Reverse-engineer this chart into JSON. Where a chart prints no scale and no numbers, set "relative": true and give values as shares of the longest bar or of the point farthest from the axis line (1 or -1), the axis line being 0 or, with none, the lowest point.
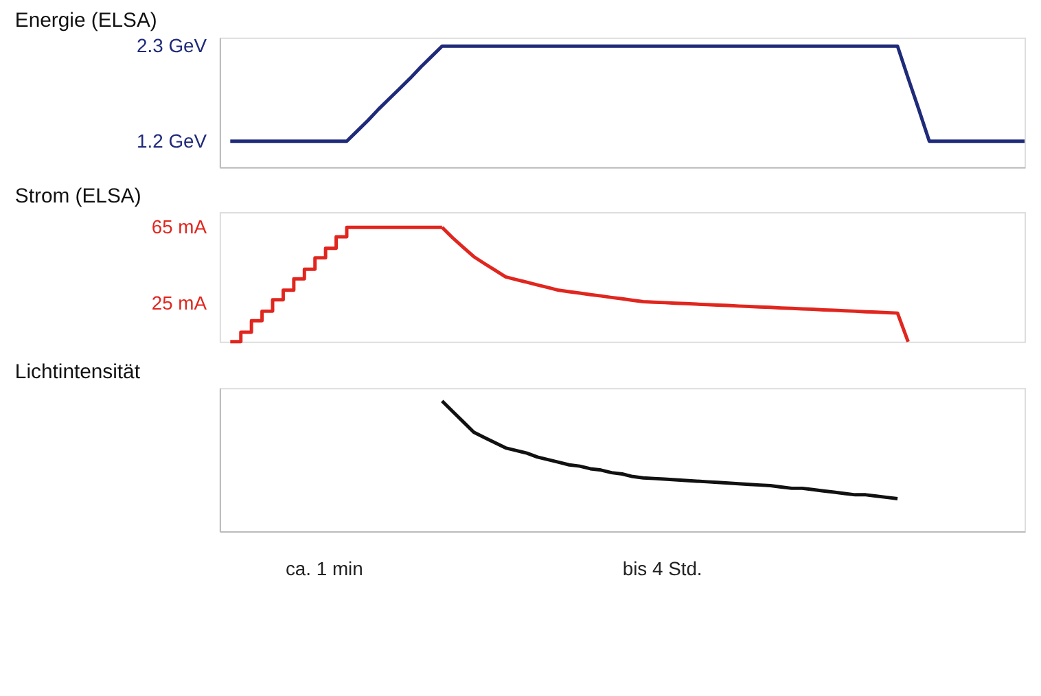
{
  "chart_data": [
    {
      "type": "line",
      "title": "Energie (ELSA)",
      "ylim": [
        0.9,
        2.4
      ],
      "yticks": [
        {
          "value": 1.2,
          "label": "1.2 GeV"
        },
        {
          "value": 2.3,
          "label": "2.3 GeV"
        }
      ],
      "tick_labels": "y",
      "categories": [
        null,
        null,
        null,
        null,
        null,
        null,
        null,
        null,
        null,
        null,
        null,
        null,
        null,
        null,
        null,
        null,
        null,
        null,
        null,
        null,
        null,
        null,
        null,
        null,
        null,
        null,
        null,
        null,
        null,
        null,
        null,
        null,
        null,
        null,
        null,
        null,
        null,
        null,
        null,
        null,
        null,
        null,
        null,
        null,
        null,
        null,
        null,
        null,
        null,
        null,
        null,
        null,
        null,
        null,
        null,
        null,
        null,
        null,
        null,
        null,
        null,
        null,
        null,
        null,
        null,
        null,
        null,
        null,
        null,
        null,
        null,
        null,
        null,
        null,
        null,
        null,
        null
      ],
      "series": [
        {
          "color": "#1f2a7a",
          "values": [
            null,
            1.2,
            1.2,
            1.2,
            1.2,
            1.2,
            1.2,
            1.2,
            1.2,
            1.2,
            1.2,
            1.2,
            1.2,
            1.32,
            1.44,
            1.57,
            1.69,
            1.81,
            1.93,
            2.06,
            2.18,
            2.3,
            2.3,
            2.3,
            2.3,
            2.3,
            2.3,
            2.3,
            2.3,
            2.3,
            2.3,
            2.3,
            2.3,
            2.3,
            2.3,
            2.3,
            2.3,
            2.3,
            2.3,
            2.3,
            2.3,
            2.3,
            2.3,
            2.3,
            2.3,
            2.3,
            2.3,
            2.3,
            2.3,
            2.3,
            2.3,
            2.3,
            2.3,
            2.3,
            2.3,
            2.3,
            2.3,
            2.3,
            2.3,
            2.3,
            2.3,
            2.3,
            2.3,
            2.3,
            2.3,
            1.93,
            1.57,
            1.2,
            1.2,
            1.2,
            1.2,
            1.2,
            1.2,
            1.2,
            1.2,
            1.2,
            1.2
          ]
        }
      ]
    },
    {
      "type": "line",
      "title": "Strom (ELSA)",
      "ylim": [
        5,
        73
      ],
      "yticks": [
        {
          "value": 25,
          "label": "25 mA"
        },
        {
          "value": 65,
          "label": "65 mA"
        }
      ],
      "tick_labels": "y",
      "categories": [
        null,
        null,
        null,
        null,
        null,
        null,
        null,
        null,
        null,
        null,
        null,
        null,
        null,
        null,
        null,
        null,
        null,
        null,
        null,
        null,
        null,
        null,
        null,
        null,
        null,
        null,
        null,
        null,
        null,
        null,
        null,
        null,
        null,
        null,
        null,
        null,
        null,
        null,
        null,
        null,
        null,
        null,
        null,
        null,
        null,
        null,
        null,
        null,
        null,
        null,
        null,
        null,
        null,
        null,
        null,
        null,
        null,
        null,
        null,
        null,
        null,
        null,
        null,
        null,
        null,
        null,
        null,
        null,
        null,
        null,
        null,
        null,
        null,
        null,
        null,
        null,
        null
      ],
      "series": [
        {
          "type": "step",
          "color": "#e0261e",
          "values": [
            null,
            5,
            10,
            16,
            21,
            27,
            32,
            38,
            43,
            49,
            54,
            60,
            65,
            65,
            65,
            65,
            65,
            65,
            65,
            65,
            65,
            65,
            null,
            null,
            null,
            null,
            null,
            null,
            null,
            null,
            null,
            null,
            null,
            null,
            null,
            null,
            null,
            null,
            null,
            null,
            null,
            null,
            null,
            null,
            null,
            null,
            null,
            null,
            null,
            null,
            null,
            null,
            null,
            null,
            null,
            null,
            null,
            null,
            null,
            null,
            null,
            null,
            null,
            null,
            null,
            null,
            null,
            null,
            null,
            null,
            null,
            null,
            null,
            null,
            null,
            null,
            null
          ]
        },
        {
          "type": "line",
          "color": "#e0261e",
          "values": [
            null,
            null,
            null,
            null,
            null,
            null,
            null,
            null,
            null,
            null,
            null,
            null,
            null,
            null,
            null,
            null,
            null,
            null,
            null,
            null,
            null,
            65,
            59.5,
            54.5,
            49.6,
            46,
            42.5,
            39,
            37.6,
            36.2,
            34.8,
            33.4,
            32,
            31.2,
            30.5,
            29.7,
            29,
            28.2,
            27.5,
            26.7,
            26,
            25.7,
            25.5,
            25.2,
            25,
            24.7,
            24.5,
            24.2,
            24,
            23.7,
            23.5,
            23.2,
            23,
            22.7,
            22.5,
            22.2,
            22,
            21.7,
            21.5,
            21.2,
            21,
            20.7,
            20.5,
            20.2,
            20,
            5,
            null,
            null,
            null,
            null,
            null,
            null,
            null,
            null,
            null,
            null,
            null
          ]
        }
      ]
    },
    {
      "type": "line",
      "title": "Lichtintensität",
      "relative": true,
      "tick_labels": false,
      "categories": [
        null,
        null,
        null,
        null,
        null,
        null,
        null,
        null,
        null,
        null,
        null,
        null,
        null,
        null,
        null,
        null,
        null,
        null,
        null,
        null,
        null,
        null,
        null,
        null,
        null,
        null,
        null,
        null,
        null,
        null,
        null,
        null,
        null,
        null,
        null,
        null,
        null,
        null,
        null,
        null,
        null,
        null,
        null,
        null,
        null,
        null,
        null,
        null,
        null,
        null,
        null,
        null,
        null,
        null,
        null,
        null,
        null,
        null,
        null,
        null,
        null,
        null,
        null,
        null,
        null,
        null,
        null,
        null,
        null,
        null,
        null,
        null,
        null,
        null,
        null,
        null,
        null
      ],
      "series": [
        {
          "color": "#111111",
          "values": [
            null,
            null,
            null,
            null,
            null,
            null,
            null,
            null,
            null,
            null,
            null,
            null,
            null,
            null,
            null,
            null,
            null,
            null,
            null,
            null,
            null,
            1.0,
            0.92,
            0.84,
            0.76,
            0.72,
            0.68,
            0.64,
            0.62,
            0.6,
            0.57,
            0.55,
            0.53,
            0.51,
            0.5,
            0.48,
            0.47,
            0.45,
            0.44,
            0.42,
            0.41,
            0.405,
            0.4,
            0.395,
            0.39,
            0.385,
            0.38,
            0.375,
            0.37,
            0.365,
            0.36,
            0.355,
            0.35,
            0.34,
            0.33,
            0.33,
            0.32,
            0.31,
            0.3,
            0.29,
            0.28,
            0.28,
            0.27,
            0.26,
            0.25,
            null,
            null,
            null,
            null,
            null,
            null,
            null,
            null,
            null,
            null,
            null,
            null
          ]
        }
      ],
      "annotations": [
        "ca. 1 min",
        "bis 4 Std."
      ]
    }
  ]
}
